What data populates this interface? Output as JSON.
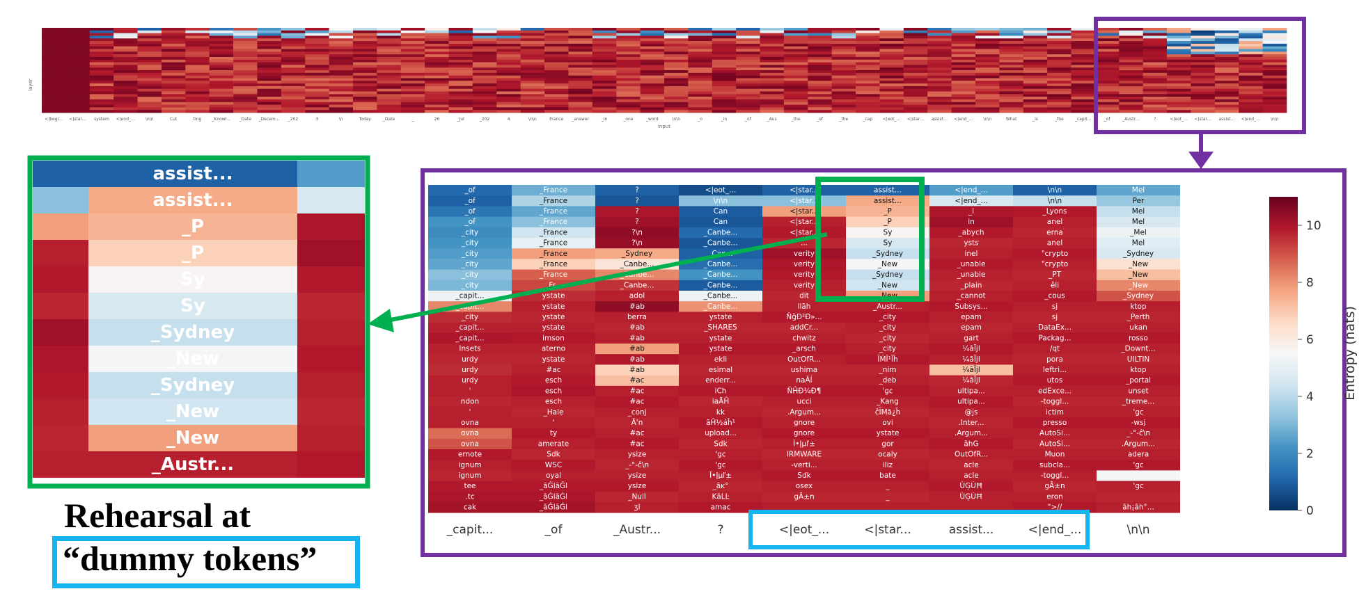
{
  "overview": {
    "xlabel": "input",
    "ylabel": "layer",
    "tick_labels": [
      "<|begi…",
      "<|star…",
      "system",
      "<|end_…",
      "\\n\\n",
      "Cut",
      "ting",
      "_Knowl…",
      "_Date",
      "_Decem…",
      "_202",
      "3",
      "\\n",
      "Today",
      "_Date",
      "_",
      "26",
      "_Jul",
      "_202",
      "4",
      "\\n\\n",
      "France",
      "_answer",
      "_in",
      "_one",
      "_word",
      "\\n\\n",
      "_o",
      "_in",
      "_of",
      "_Aus",
      "_the",
      "_of",
      "_the",
      "_cap",
      "<|eot_…",
      "<|star…",
      "assist…",
      "<|end_…",
      "\\n\\n",
      "What",
      "_is",
      "_the",
      "_capit…",
      "_of",
      "_Austr…",
      "?",
      "<|eot_…",
      "<|star…",
      "assist…",
      "<|end_…",
      "\\n\\n"
    ]
  },
  "chart_data": {
    "type": "heatmap",
    "x_tick_labels": [
      "_capit...",
      "_of",
      "_Austr...",
      "?",
      "<|eot_...",
      "<|star...",
      "assist...",
      "<|end_...",
      "\\n\\n"
    ],
    "colorbar": {
      "label": "Entropy (nats)",
      "ticks": [
        0,
        2,
        4,
        6,
        8,
        10
      ],
      "range": [
        0,
        11
      ],
      "colorscale": "RdBu_r"
    },
    "columns": [
      {
        "cells": [
          [
            "_of",
            1.2
          ],
          [
            "_of",
            1.0
          ],
          [
            "_of",
            1.5
          ],
          [
            "_of",
            2.2
          ],
          [
            "_city",
            2.0
          ],
          [
            "_city",
            2.2
          ],
          [
            "_city",
            2.4
          ],
          [
            "_city",
            2.6
          ],
          [
            "_city",
            3.2
          ],
          [
            "_city",
            3.0
          ],
          [
            "_capit...",
            5.2
          ],
          [
            "_capit...",
            8.2
          ],
          [
            "_city",
            9.6
          ],
          [
            "_capit...",
            9.8
          ],
          [
            "_capit...",
            10.0
          ],
          [
            "Insets",
            9.8
          ],
          [
            "urdy",
            9.7
          ],
          [
            "urdy",
            9.6
          ],
          [
            "urdy",
            9.8
          ],
          [
            "'",
            9.8
          ],
          [
            "ndon",
            9.7
          ],
          [
            "'",
            9.8
          ],
          [
            "ovna",
            9.8
          ],
          [
            "ovna",
            8.6
          ],
          [
            "ovna",
            9.0
          ],
          [
            "ernote",
            9.9
          ],
          [
            "ignum",
            9.8
          ],
          [
            "ignum",
            9.7
          ],
          [
            "tee",
            9.9
          ],
          [
            ".tc",
            10.0
          ],
          [
            "cak",
            10.1
          ]
        ]
      },
      {
        "cells": [
          [
            "_France",
            2.8
          ],
          [
            "_France",
            3.8
          ],
          [
            "_France",
            2.6
          ],
          [
            "_France",
            3.2
          ],
          [
            "_France",
            4.4
          ],
          [
            "_France",
            5.0
          ],
          [
            "_France",
            7.8
          ],
          [
            "_France",
            6.8
          ],
          [
            "_France",
            8.8
          ],
          [
            "_Fr...",
            9.2
          ],
          [
            "ystate",
            9.6
          ],
          [
            "ystate",
            9.8
          ],
          [
            "ystate",
            9.7
          ],
          [
            "ystate",
            9.8
          ],
          [
            "imson",
            9.9
          ],
          [
            "aterno",
            9.8
          ],
          [
            "ystate",
            9.7
          ],
          [
            "#ac",
            9.8
          ],
          [
            "esch",
            9.9
          ],
          [
            "esch",
            10.0
          ],
          [
            "esch",
            9.8
          ],
          [
            "_Hale",
            9.7
          ],
          [
            "'",
            9.8
          ],
          [
            "ty",
            9.9
          ],
          [
            "amerate",
            9.8
          ],
          [
            "Sdk",
            9.7
          ],
          [
            "WSC",
            9.9
          ],
          [
            "oyal",
            9.8
          ],
          [
            "_āĠlāĠl",
            9.9
          ],
          [
            "_āĠlāĠl",
            10.0
          ],
          [
            "_āĠlāĠl",
            10.1
          ]
        ]
      },
      {
        "cells": [
          [
            "?",
            1.0
          ],
          [
            "?",
            0.8
          ],
          [
            "?",
            10.0
          ],
          [
            "?",
            10.2
          ],
          [
            "?\\n",
            10.4
          ],
          [
            "?\\n",
            10.3
          ],
          [
            "_Sydney",
            7.6
          ],
          [
            "_Canbe...",
            6.2
          ],
          [
            "_Canbe...",
            8.2
          ],
          [
            "_Canbe...",
            9.5
          ],
          [
            "adol",
            9.8
          ],
          [
            "#ab",
            10.4
          ],
          [
            "berra",
            9.8
          ],
          [
            "#ab",
            9.7
          ],
          [
            "#ab",
            9.8
          ],
          [
            "#ab",
            7.8
          ],
          [
            "#ab",
            9.9
          ],
          [
            "#ab",
            6.8
          ],
          [
            "#ac",
            7.2
          ],
          [
            "#ac",
            9.8
          ],
          [
            "#ac",
            9.9
          ],
          [
            "_conj",
            9.8
          ],
          [
            "Ā'n",
            9.7
          ],
          [
            "#ac",
            9.8
          ],
          [
            "#ac",
            9.9
          ],
          [
            "ysize",
            9.8
          ],
          [
            "_-°-ĉ\\n",
            9.7
          ],
          [
            "ysize",
            9.8
          ],
          [
            "ysize",
            9.9
          ],
          [
            "_Null",
            9.7
          ],
          [
            "ʒl",
            9.8
          ]
        ]
      },
      {
        "cells": [
          [
            "<|eot_...",
            0.6
          ],
          [
            "\\n\\n",
            3.2
          ],
          [
            "Can",
            0.9
          ],
          [
            "Can",
            0.8
          ],
          [
            "_Canbe...",
            1.2
          ],
          [
            "_Canbe...",
            0.8
          ],
          [
            "_Can...",
            1.0
          ],
          [
            "_Canbe...",
            1.3
          ],
          [
            "_Canbe...",
            2.2
          ],
          [
            "_Canbe...",
            0.9
          ],
          [
            "_Canbe...",
            5.2
          ],
          [
            "_Canbe...",
            8.0
          ],
          [
            "ystate",
            9.8
          ],
          [
            "_SHARES",
            9.7
          ],
          [
            "ystate",
            9.8
          ],
          [
            "ystate",
            9.9
          ],
          [
            "ekli",
            9.8
          ],
          [
            "esimal",
            9.7
          ],
          [
            "enderr...",
            9.8
          ],
          [
            "iCh",
            9.9
          ],
          [
            "iaĀĤ",
            9.7
          ],
          [
            "kk",
            9.8
          ],
          [
            "āĤ½áĥ¹",
            9.9
          ],
          [
            "upload...",
            9.8
          ],
          [
            "Sdk",
            9.7
          ],
          [
            "'gc",
            9.8
          ],
          [
            "'gc",
            9.9
          ],
          [
            "Ĭ•Įµľ±",
            9.8
          ],
          [
            "_āĸ°",
            9.7
          ],
          [
            "KāLĿ",
            9.8
          ],
          [
            "amac",
            9.9
          ]
        ]
      },
      {
        "cells": [
          [
            "<|star...",
            1.0
          ],
          [
            "<|star...",
            3.2
          ],
          [
            "<|star...",
            7.8
          ],
          [
            "<|star...",
            9.8
          ],
          [
            "<|star...",
            9.9
          ],
          [
            "...",
            9.7
          ],
          [
            "verity",
            10.2
          ],
          [
            "verity",
            10.0
          ],
          [
            "verity",
            9.9
          ],
          [
            "verity",
            9.8
          ],
          [
            "dit",
            9.7
          ],
          [
            "llāh",
            9.8
          ],
          [
            "ŇĝĐ²Đ»...",
            9.9
          ],
          [
            "addCr...",
            9.7
          ],
          [
            "chwitz",
            9.8
          ],
          [
            "_arsch",
            9.9
          ],
          [
            "OutOfR...",
            9.8
          ],
          [
            "ushima",
            9.7
          ],
          [
            "naĀĺ",
            9.8
          ],
          [
            "ŇĤĐ¾Đ¶",
            9.9
          ],
          [
            "ucci",
            9.8
          ],
          [
            ".Argum...",
            9.7
          ],
          [
            "gnore",
            9.8
          ],
          [
            "gnore",
            9.9
          ],
          [
            "Ì•Įµľ±",
            9.8
          ],
          [
            "IRMWARE",
            9.7
          ],
          [
            "-verti...",
            9.8
          ],
          [
            "Sdk",
            9.9
          ],
          [
            "osex",
            9.8
          ],
          [
            "gÂ±n",
            9.7
          ],
          [
            "",
            9.8
          ]
        ]
      },
      {
        "cells": [
          [
            "assist...",
            1.0
          ],
          [
            "assist...",
            7.6
          ],
          [
            "_P",
            7.4
          ],
          [
            "_P",
            6.8
          ],
          [
            "Sy",
            5.6
          ],
          [
            "Sy",
            4.6
          ],
          [
            "_Sydney",
            4.2
          ],
          [
            "_New",
            5.4
          ],
          [
            "_Sydney",
            4.2
          ],
          [
            "_New",
            4.4
          ],
          [
            "_New",
            7.8
          ],
          [
            "_Austr...",
            9.8
          ],
          [
            "_city",
            9.9
          ],
          [
            "_city",
            9.8
          ],
          [
            "_city",
            9.7
          ],
          [
            "_city",
            9.8
          ],
          [
            "ĨḾĪ¹Īĥ",
            9.9
          ],
          [
            "_nim",
            9.7
          ],
          [
            "_deb",
            9.8
          ],
          [
            "'gc",
            9.9
          ],
          [
            "_Kang",
            9.8
          ],
          [
            "ĉĨMā¿ĥ",
            9.7
          ],
          [
            "ovi",
            9.8
          ],
          [
            "ystate",
            9.9
          ],
          [
            "gor",
            9.8
          ],
          [
            "ocaly",
            9.7
          ],
          [
            "iliz",
            9.8
          ],
          [
            "bate",
            9.9
          ],
          [
            "_",
            9.8
          ],
          [
            "_",
            9.7
          ],
          [
            "",
            9.8
          ]
        ]
      },
      {
        "cells": [
          [
            "<|end_...",
            2.4
          ],
          [
            "<|end_...",
            4.6
          ],
          [
            "_l",
            10.0
          ],
          [
            "in",
            10.2
          ],
          [
            "_abych",
            9.9
          ],
          [
            "ysts",
            9.7
          ],
          [
            "inel",
            9.8
          ],
          [
            "_unable",
            9.9
          ],
          [
            "_unable",
            9.8
          ],
          [
            "_plain",
            9.7
          ],
          [
            "_cannot",
            9.8
          ],
          [
            "Subsys...",
            9.9
          ],
          [
            "epam",
            9.8
          ],
          [
            "epam",
            9.7
          ],
          [
            "gart",
            9.8
          ],
          [
            "¼āĪjl",
            9.9
          ],
          [
            "¼āĪjl",
            9.8
          ],
          [
            "¼āĪjl",
            7.2
          ],
          [
            "¼āĪjl",
            9.7
          ],
          [
            "ultipa...",
            9.8
          ],
          [
            "ultipa...",
            9.9
          ],
          [
            "@js",
            9.8
          ],
          [
            ".Inter...",
            9.7
          ],
          [
            ".Argum...",
            9.8
          ],
          [
            "āhG",
            9.9
          ],
          [
            "OutOfR...",
            9.8
          ],
          [
            "acle",
            9.7
          ],
          [
            "acle",
            9.8
          ],
          [
            "ÙĢÙĦ",
            9.9
          ],
          [
            "ÙĢÙĦ",
            9.8
          ],
          [
            "",
            9.8
          ]
        ]
      },
      {
        "cells": [
          [
            "\\n\\n",
            1.0
          ],
          [
            "\\n\\n",
            4.2
          ],
          [
            "_Lyons",
            9.9
          ],
          [
            "anel",
            9.8
          ],
          [
            "erna",
            9.7
          ],
          [
            "anel",
            9.8
          ],
          [
            "\"crypto",
            9.9
          ],
          [
            "\"crypto",
            9.8
          ],
          [
            "_PT",
            9.7
          ],
          [
            "ěli",
            9.8
          ],
          [
            "_cous",
            9.9
          ],
          [
            "sj",
            9.8
          ],
          [
            "sj",
            9.7
          ],
          [
            "DataEx...",
            9.8
          ],
          [
            "Packag...",
            9.9
          ],
          [
            "/qt",
            9.8
          ],
          [
            "pora",
            9.7
          ],
          [
            "leftri...",
            9.8
          ],
          [
            "utos",
            9.9
          ],
          [
            "edExce...",
            9.8
          ],
          [
            "-toggl...",
            9.7
          ],
          [
            "ictim",
            9.8
          ],
          [
            "presso",
            9.9
          ],
          [
            "AutoSi...",
            9.8
          ],
          [
            "AutoSi...",
            9.7
          ],
          [
            "Muon",
            9.8
          ],
          [
            "subcla...",
            9.9
          ],
          [
            "-toggl...",
            9.8
          ],
          [
            "gÂ±n",
            9.7
          ],
          [
            "eron",
            9.8
          ],
          [
            "\">//",
            9.9
          ]
        ]
      },
      {
        "cells": [
          [
            "Mel",
            2.6
          ],
          [
            "Per",
            3.4
          ],
          [
            "Mel",
            4.2
          ],
          [
            "Mel",
            4.6
          ],
          [
            "_Mel",
            5.2
          ],
          [
            "Mel",
            4.8
          ],
          [
            "_Sydney",
            4.6
          ],
          [
            "_New",
            6.4
          ],
          [
            "_New",
            7.2
          ],
          [
            "_New",
            8.2
          ],
          [
            "_Sydney",
            9.0
          ],
          [
            "ktop",
            9.8
          ],
          [
            "_Perth",
            9.7
          ],
          [
            "ukan",
            9.8
          ],
          [
            "rosso",
            9.9
          ],
          [
            "_Downt...",
            9.8
          ],
          [
            "UILTIN",
            9.7
          ],
          [
            "ktop",
            9.8
          ],
          [
            "_portal",
            9.9
          ],
          [
            "unset",
            9.8
          ],
          [
            "_treme...",
            9.7
          ],
          [
            "'gc",
            9.8
          ],
          [
            "-wsj",
            9.9
          ],
          [
            "_-°-ĉ\\n",
            9.8
          ],
          [
            ".Argum...",
            9.7
          ],
          [
            "adera",
            9.8
          ],
          [
            "'gc",
            9.9
          ],
          [
            "",
            5.4
          ],
          [
            "'gc",
            9.8
          ],
          [
            "",
            9.7
          ],
          [
            "āh¡āh°...",
            9.8
          ]
        ]
      }
    ]
  },
  "captions": {
    "line1": "Rehearsal at",
    "line2": "“dummy tokens”"
  },
  "colors": {
    "purple": "#7030a0",
    "green": "#00b050",
    "blue": "#14b4f0"
  }
}
